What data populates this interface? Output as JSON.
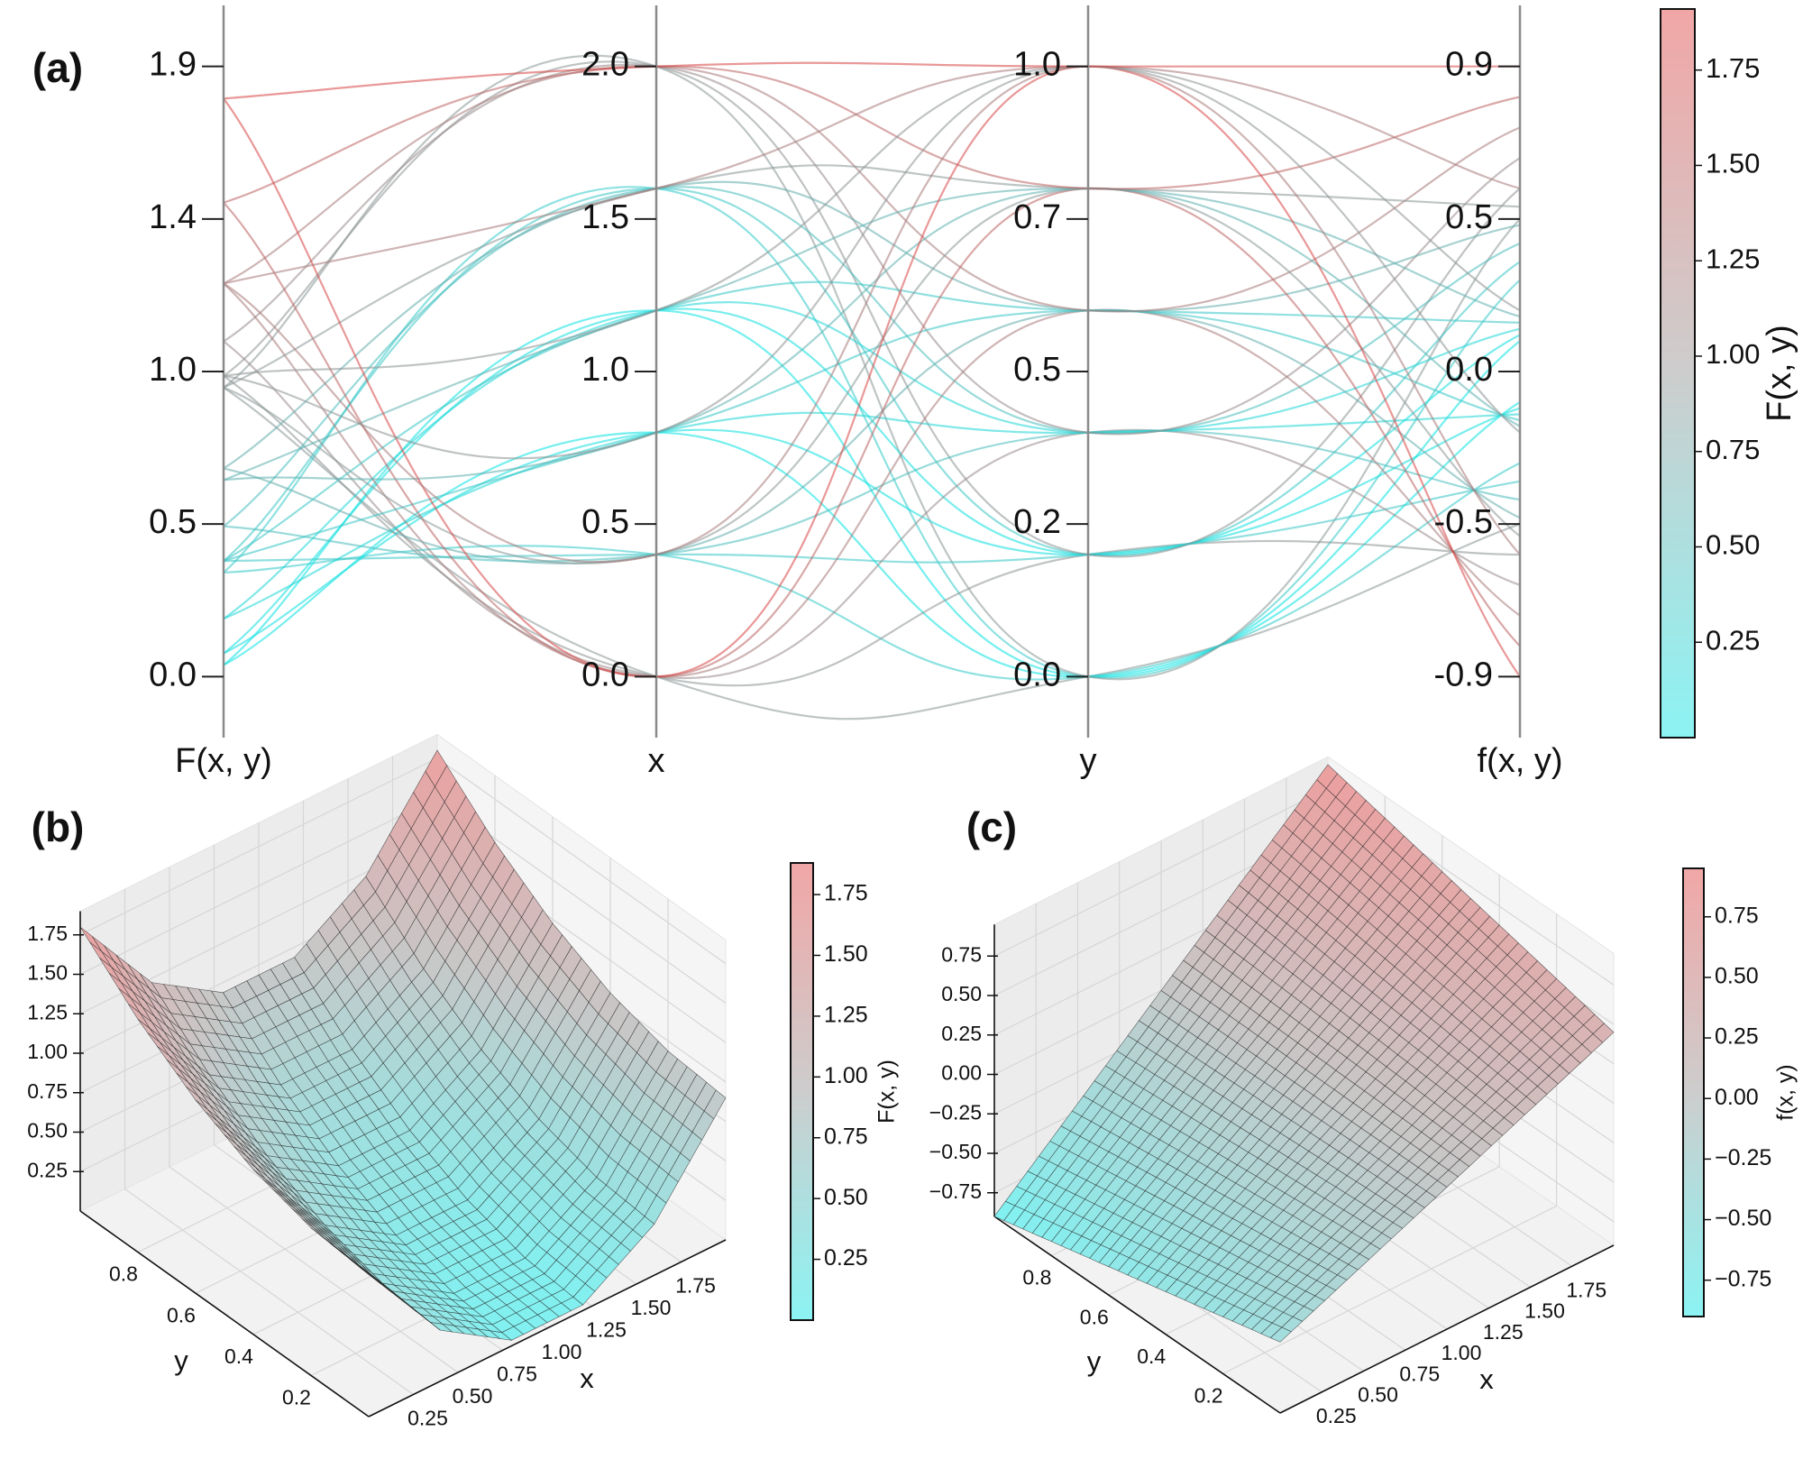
{
  "colormap": [
    "#00e5e5",
    "#909090",
    "#e03a3a"
  ],
  "chart_data": [
    {
      "type": "parallel",
      "label": "(a)",
      "axes": [
        {
          "name": "F(x, y)",
          "lim": [
            -0.19,
            2.09
          ],
          "ticks": [
            {
              "value": 0,
              "label": "0.0"
            },
            {
              "value": 0.475,
              "label": "0.5"
            },
            {
              "value": 0.95,
              "label": "1.0"
            },
            {
              "value": 1.425,
              "label": "1.4"
            },
            1.9
          ]
        },
        {
          "name": "x",
          "lim": [
            -0.2,
            2.2
          ],
          "ticks": [
            {
              "value": 0,
              "label": "0.0"
            },
            0.5,
            {
              "value": 1,
              "label": "1.0"
            },
            1.5,
            {
              "value": 2,
              "label": "2.0"
            }
          ]
        },
        {
          "name": "y",
          "lim": [
            -0.1,
            1.1
          ],
          "ticks": [
            {
              "value": 0,
              "label": "0.0"
            },
            {
              "value": 0.25,
              "label": "0.2"
            },
            0.5,
            {
              "value": 0.75,
              "label": "0.7"
            },
            {
              "value": 1,
              "label": "1.0"
            }
          ]
        },
        {
          "name": "f(x, y)",
          "lim": [
            -1.08,
            1.08
          ],
          "ticks": [
            -0.9,
            {
              "value": -0.45,
              "label": "-0.5"
            },
            {
              "value": 0,
              "label": "0.0"
            },
            {
              "value": 0.45,
              "label": "0.5"
            },
            0.9
          ]
        }
      ],
      "colorbar": {
        "label": "F(x, y)",
        "lim": [
          0,
          1.91
        ],
        "ticks": [
          0.25,
          {
            "value": 0.5,
            "label": "0.50"
          },
          0.75,
          {
            "value": 1,
            "label": "1.00"
          },
          1.25,
          {
            "value": 1.5,
            "label": "1.50"
          },
          1.75
        ]
      }
    },
    {
      "type": "surface",
      "label": "(b)",
      "xlabel": "x",
      "ylabel": "y",
      "x": [
        0,
        0.4,
        0.8,
        1.2,
        1.6,
        2
      ],
      "y": [
        0,
        0.2,
        0.4,
        0.6,
        0.8,
        1
      ],
      "z": [
        [
          0.9,
          0.324,
          0.036,
          0.036,
          0.324,
          0.9
        ],
        [
          0.936,
          0.36,
          0.072,
          0.072,
          0.36,
          0.936
        ],
        [
          1.044,
          0.468,
          0.18,
          0.18,
          0.468,
          1.044
        ],
        [
          1.224,
          0.648,
          0.36,
          0.36,
          0.648,
          1.224
        ],
        [
          1.476,
          0.9,
          0.612,
          0.612,
          0.9,
          1.476
        ],
        [
          1.8,
          1.224,
          0.936,
          0.936,
          1.224,
          1.8
        ]
      ],
      "xlim": [
        0,
        2
      ],
      "ylim": [
        0,
        1
      ],
      "zlim": [
        0,
        1.9
      ],
      "xticks": [
        0.25,
        {
          "value": 0.5,
          "label": "0.50"
        },
        0.75,
        {
          "value": 1,
          "label": "1.00"
        },
        1.25,
        {
          "value": 1.5,
          "label": "1.50"
        },
        1.75
      ],
      "yticks": [
        0.2,
        0.4,
        0.6,
        0.8
      ],
      "zticks": [
        0.25,
        {
          "value": 0.5,
          "label": "0.50"
        },
        0.75,
        {
          "value": 1,
          "label": "1.00"
        },
        1.25,
        {
          "value": 1.5,
          "label": "1.50"
        },
        1.75
      ],
      "colorbar": {
        "label": "F(x, y)",
        "lim": [
          0,
          1.88
        ],
        "ticks": [
          0.25,
          {
            "value": 0.5,
            "label": "0.50"
          },
          0.75,
          {
            "value": 1,
            "label": "1.00"
          },
          1.25,
          {
            "value": 1.5,
            "label": "1.50"
          },
          1.75
        ]
      }
    },
    {
      "type": "surface",
      "label": "(c)",
      "xlabel": "x",
      "ylabel": "y",
      "x": [
        0,
        0.4,
        0.8,
        1.2,
        1.6,
        2
      ],
      "y": [
        0,
        0.2,
        0.4,
        0.6,
        0.8,
        1
      ],
      "z": [
        [
          -0.45,
          -0.27,
          -0.09,
          0.09,
          0.27,
          0.45
        ],
        [
          -0.54,
          -0.324,
          -0.108,
          0.108,
          0.324,
          0.54
        ],
        [
          -0.63,
          -0.378,
          -0.126,
          0.126,
          0.378,
          0.63
        ],
        [
          -0.72,
          -0.432,
          -0.144,
          0.144,
          0.432,
          0.72
        ],
        [
          -0.81,
          -0.486,
          -0.162,
          0.162,
          0.486,
          0.81
        ],
        [
          -0.9,
          -0.54,
          -0.18,
          0.18,
          0.54,
          0.9
        ]
      ],
      "xlim": [
        0,
        2
      ],
      "ylim": [
        0,
        1
      ],
      "zlim": [
        -0.9,
        0.95
      ],
      "xticks": [
        0.25,
        {
          "value": 0.5,
          "label": "0.50"
        },
        0.75,
        {
          "value": 1,
          "label": "1.00"
        },
        1.25,
        {
          "value": 1.5,
          "label": "1.50"
        },
        1.75
      ],
      "yticks": [
        0.2,
        0.4,
        0.6,
        0.8
      ],
      "zticks": [
        {
          "value": -0.75,
          "label": "−0.75"
        },
        {
          "value": -0.5,
          "label": "−0.50"
        },
        {
          "value": -0.25,
          "label": "−0.25"
        },
        {
          "value": 0,
          "label": "0.00"
        },
        0.25,
        {
          "value": 0.5,
          "label": "0.50"
        },
        0.75
      ],
      "colorbar": {
        "label": "f(x, y)",
        "lim": [
          -0.9,
          0.95
        ],
        "ticks": [
          {
            "value": -0.75,
            "label": "−0.75"
          },
          {
            "value": -0.5,
            "label": "−0.50"
          },
          {
            "value": -0.25,
            "label": "−0.25"
          },
          {
            "value": 0,
            "label": "0.00"
          },
          0.25,
          {
            "value": 0.5,
            "label": "0.50"
          },
          0.75
        ]
      }
    }
  ]
}
